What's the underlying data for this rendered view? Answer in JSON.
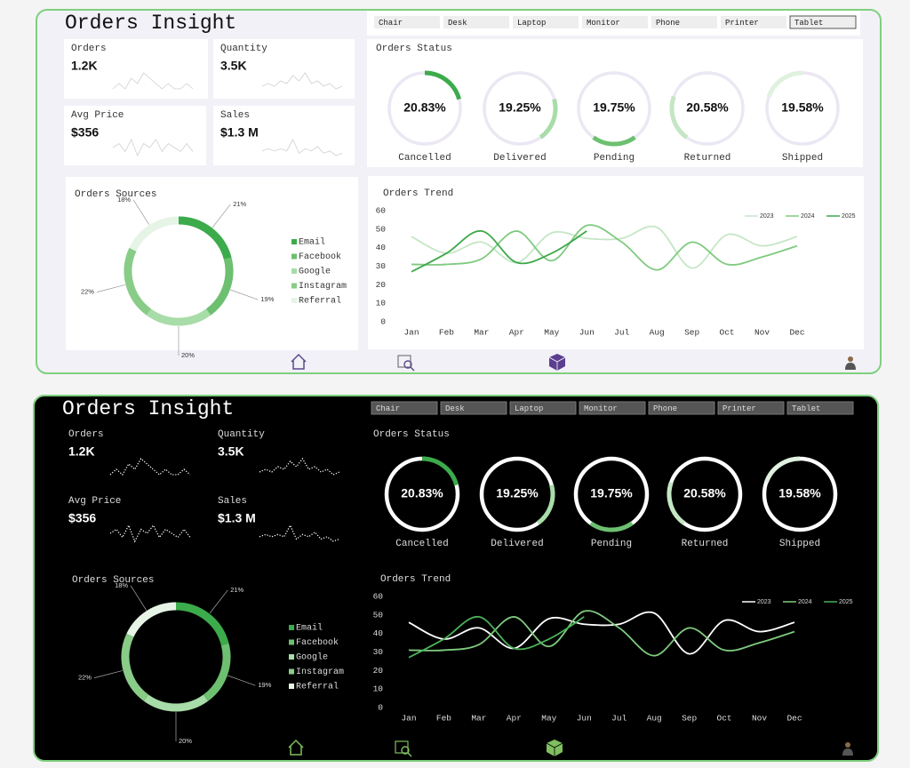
{
  "title": "Orders Insight",
  "filters": [
    "Chair",
    "Desk",
    "Laptop",
    "Monitor",
    "Phone",
    "Printer",
    "Tablet"
  ],
  "kpis": [
    {
      "label": "Orders",
      "value": "1.2K",
      "trend": [
        5,
        6,
        5,
        7,
        6,
        8,
        7,
        6,
        5,
        6,
        5,
        5,
        6,
        5
      ]
    },
    {
      "label": "Quantity",
      "value": "3.5K",
      "trend": [
        4,
        5,
        4,
        6,
        5,
        8,
        6,
        9,
        5,
        6,
        4,
        5,
        3,
        4
      ]
    },
    {
      "label": "Avg Price",
      "value": "$356",
      "trend": [
        5,
        6,
        4,
        7,
        3,
        6,
        5,
        7,
        4,
        6,
        5,
        4,
        6,
        4
      ]
    },
    {
      "label": "Sales",
      "value": "$1.3 M",
      "trend": [
        4,
        5,
        4,
        5,
        4,
        9,
        3,
        5,
        4,
        6,
        3,
        4,
        2,
        3
      ]
    }
  ],
  "status": {
    "type": "rings",
    "title": "Orders Status",
    "categories": [
      "Cancelled",
      "Delivered",
      "Pending",
      "Returned",
      "Shipped"
    ],
    "values": [
      20.83,
      19.25,
      19.75,
      20.58,
      19.58
    ],
    "value_labels": [
      "20.83%",
      "19.25%",
      "19.75%",
      "20.58%",
      "19.58%"
    ],
    "colors": [
      "#3cab4b",
      "#a8dca8",
      "#6cc070",
      "#c4e6c4",
      "#dff1df"
    ]
  },
  "sources": {
    "type": "donut",
    "title": "Orders Sources",
    "categories": [
      "Email",
      "Facebook",
      "Google",
      "Instagram",
      "Referral"
    ],
    "values": [
      21,
      19,
      20,
      22,
      18
    ],
    "value_labels": [
      "21%",
      "19%",
      "20%",
      "22%",
      "18%"
    ],
    "colors": [
      "#3cab4b",
      "#6cc070",
      "#a8dca8",
      "#88cc88",
      "#e6f4e6"
    ]
  },
  "trend": {
    "type": "line",
    "title": "Orders Trend",
    "categories": [
      "Jan",
      "Feb",
      "Mar",
      "Apr",
      "May",
      "Jun",
      "Jul",
      "Aug",
      "Sep",
      "Oct",
      "Nov",
      "Dec"
    ],
    "series": [
      {
        "name": "2023",
        "color": "#c6e6c6",
        "dark_color": "#ffffff",
        "values": [
          46,
          37,
          43,
          32,
          48,
          45,
          45,
          51,
          29,
          47,
          41,
          46
        ]
      },
      {
        "name": "2024",
        "color": "#7fca7f",
        "dark_color": "#7fca7f",
        "values": [
          31,
          31,
          34,
          49,
          33,
          52,
          43,
          28,
          43,
          31,
          35,
          41
        ]
      },
      {
        "name": "2025",
        "color": "#3ea84a",
        "dark_color": "#4cb158",
        "values": [
          27,
          37,
          49,
          32,
          37,
          49,
          null,
          null,
          null,
          null,
          null,
          null
        ]
      }
    ],
    "ylim": [
      0,
      60
    ],
    "yticks": [
      0,
      10,
      20,
      30,
      40,
      50,
      60
    ],
    "legend": "upper right"
  }
}
